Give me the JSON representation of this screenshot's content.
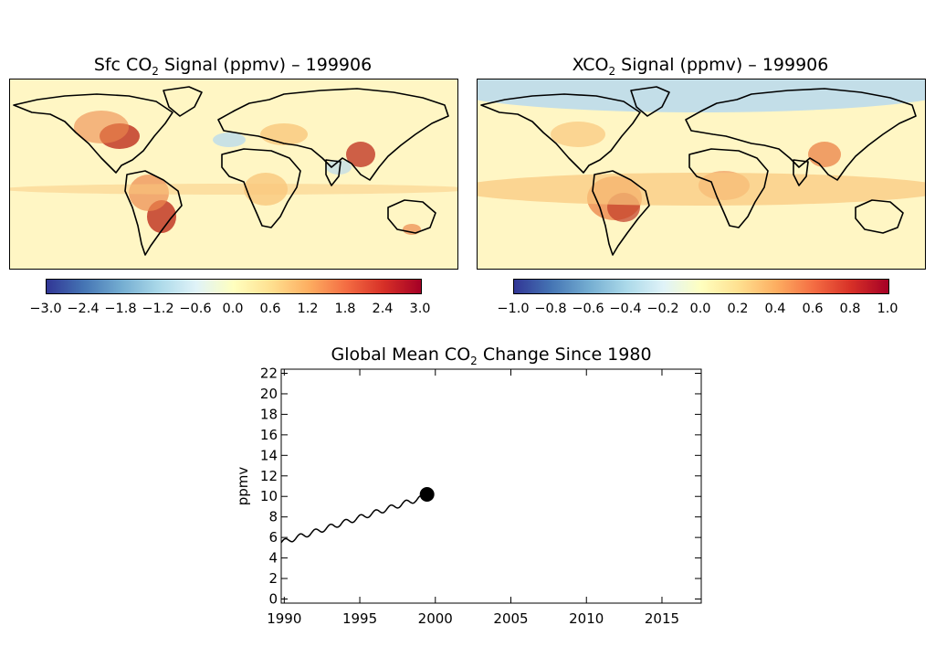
{
  "maps": [
    {
      "title_prefix": "Sfc CO",
      "title_sub": "2",
      "title_suffix": " Signal (ppmv) – 199906",
      "colorbar_ticks": [
        "−3.0",
        "−2.4",
        "−1.8",
        "−1.2",
        "−0.6",
        "0.0",
        "0.6",
        "1.2",
        "1.8",
        "2.4",
        "3.0"
      ]
    },
    {
      "title_prefix": "XCO",
      "title_sub": "2",
      "title_suffix": " Signal (ppmv) – 199906",
      "colorbar_ticks": [
        "−1.0",
        "−0.8",
        "−0.6",
        "−0.4",
        "−0.2",
        "0.0",
        "0.2",
        "0.4",
        "0.6",
        "0.8",
        "1.0"
      ]
    }
  ],
  "colors": {
    "map_background": "#fff6c4",
    "source_strong": "#c23a27",
    "source_mid": "#ec8a4f",
    "source_weak": "#f9c87d",
    "sink": "#bcdcec",
    "coast": "#000000"
  },
  "colorbar_colors": [
    "#313695",
    "#4575b4",
    "#74add1",
    "#abd9e9",
    "#e0f3f8",
    "#ffffbf",
    "#fee090",
    "#fdae61",
    "#f46d43",
    "#d73027",
    "#a50026"
  ],
  "chart_data": {
    "type": "line",
    "title_prefix": "Global Mean CO",
    "title_sub": "2",
    "title_suffix": " Change Since 1980",
    "ylabel": "ppmv",
    "xlim": [
      1989.8,
      2017.6
    ],
    "ylim": [
      -0.4,
      22.4
    ],
    "xticks": [
      1990,
      1995,
      2000,
      2005,
      2010,
      2015
    ],
    "yticks": [
      0,
      2,
      4,
      6,
      8,
      10,
      12,
      14,
      16,
      18,
      20,
      22
    ],
    "series": [
      {
        "x_start": 1989.8,
        "x_end": 1999.4,
        "y_start": 5.5,
        "y_end": 10.0,
        "seasonal_amplitude": 0.25
      }
    ],
    "marker": {
      "x": 1999.45,
      "y": 10.2
    }
  }
}
